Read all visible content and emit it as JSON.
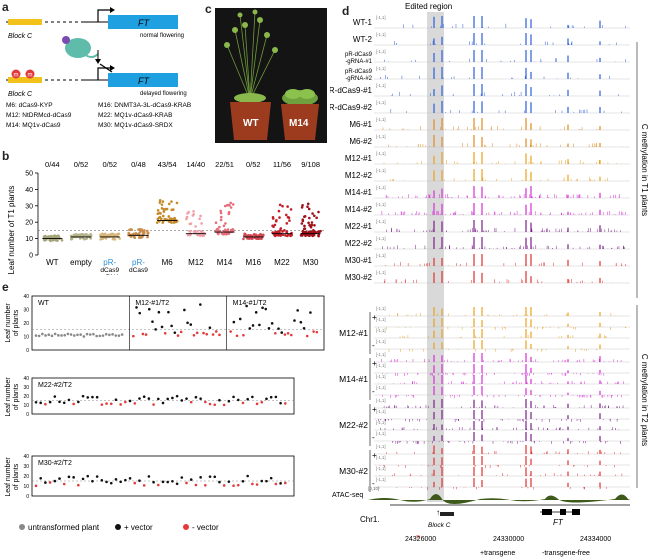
{
  "panels": {
    "a": "a",
    "b": "b",
    "c": "c",
    "d": "d",
    "e": "e"
  },
  "panel_a": {
    "block_label": "Block C",
    "gene": "FT",
    "normal": "normal flowering",
    "delayed": "delayed flowering",
    "methyl_mark": "m",
    "legend": [
      "M6: dCas9-KYP",
      "M12: NtDRMcd-dCas9",
      "M14: MQ1v-dCas9",
      "M16: DNMT3A-3L-dCas9-KRAB",
      "M22: MQ1v-dCas9-KRAB",
      "M30: MQ1v-dCas9-SRDX"
    ]
  },
  "panel_c": {
    "labels": [
      "WT",
      "M14"
    ],
    "pot_color": "#9c3b1e",
    "bg_color": "#1a1a1a"
  },
  "chart_data": [
    {
      "type": "scatter",
      "panel": "b",
      "ylabel": "Leaf number of T1 plants",
      "ylim": [
        0,
        50
      ],
      "yticks": [
        0,
        10,
        20,
        30,
        40,
        50
      ],
      "reference_line": 15,
      "categories": [
        "WT",
        "empty",
        "pR-dCas9-gRNA",
        "pR-dCas9",
        "M6",
        "M12",
        "M14",
        "M16",
        "M22",
        "M30"
      ],
      "category_display": [
        [
          "WT"
        ],
        [
          "empty"
        ],
        [
          "pR-",
          "dCas9",
          "-gRNA"
        ],
        [
          "pR-",
          "dCas9"
        ],
        [
          "M6"
        ],
        [
          "M12"
        ],
        [
          "M14"
        ],
        [
          "M16"
        ],
        [
          "M22"
        ],
        [
          "M30"
        ]
      ],
      "ratios": [
        "0/44",
        "0/52",
        "0/52",
        "0/48",
        "43/54",
        "14/40",
        "22/51",
        "0/52",
        "11/56",
        "9/108"
      ],
      "medians": [
        10,
        11,
        11,
        12,
        21,
        13,
        14,
        11,
        13,
        13
      ],
      "maxima": [
        12,
        13,
        13,
        16,
        34,
        27,
        32,
        13,
        33,
        32
      ],
      "point_counts": [
        44,
        52,
        52,
        48,
        54,
        40,
        51,
        52,
        56,
        108
      ],
      "colors": [
        "#a3a37a",
        "#b5b38a",
        "#d7b77a",
        "#c98d4d",
        "#c48a2a",
        "#f2a0a8",
        "#e66d7a",
        "#d14a52",
        "#c21f2a",
        "#a01018"
      ]
    },
    {
      "type": "scatter",
      "panel": "e",
      "ylabel": "Leaf number of plants",
      "rows": [
        {
          "titles": [
            "WT",
            "M12-#1/T2",
            "M14-#1/T2"
          ],
          "ylim": [
            0,
            40
          ],
          "yticks": [
            0,
            10,
            20,
            30,
            40
          ]
        },
        {
          "titles": [
            "M22-#2/T2"
          ],
          "ylim": [
            0,
            40
          ],
          "yticks": [
            0,
            10,
            20,
            30,
            40
          ]
        },
        {
          "titles": [
            "M30-#2/T2"
          ],
          "ylim": [
            0,
            40
          ],
          "yticks": [
            0,
            10,
            20,
            30,
            40
          ]
        }
      ],
      "legend": [
        {
          "label": "untransformed plant",
          "color": "#888888"
        },
        {
          "label": "+ vector",
          "color": "#111111"
        },
        {
          "label": "- vector",
          "color": "#e33b3b"
        }
      ]
    },
    {
      "type": "line",
      "panel": "d",
      "title": "Edited region",
      "scale_label": "[-1,1]",
      "atac_scale": "[0,10]",
      "tracks": [
        {
          "name": "WT-1",
          "color": "#2b5fd9"
        },
        {
          "name": "WT-2",
          "color": "#2b5fd9"
        },
        {
          "name": "pR-dCas9-gRNA-#1",
          "color": "#2b5fd9"
        },
        {
          "name": "pR-dCas9-gRNA-#2",
          "color": "#2b5fd9"
        },
        {
          "name": "pR-dCas9-#1",
          "color": "#2b5fd9"
        },
        {
          "name": "pR-dCas9-#2",
          "color": "#2b5fd9"
        },
        {
          "name": "M6-#1",
          "color": "#e08a1e"
        },
        {
          "name": "M6-#2",
          "color": "#e08a1e"
        },
        {
          "name": "M12-#1",
          "color": "#e8a21e"
        },
        {
          "name": "M12-#2",
          "color": "#e8a21e"
        },
        {
          "name": "M14-#1",
          "color": "#d62fd6"
        },
        {
          "name": "M14-#2",
          "color": "#d62fd6"
        },
        {
          "name": "M22-#1",
          "color": "#7a2088"
        },
        {
          "name": "M22-#2",
          "color": "#7a2088"
        },
        {
          "name": "M30-#1",
          "color": "#e03030"
        },
        {
          "name": "M30-#2",
          "color": "#e03030"
        }
      ],
      "t2_groups": [
        {
          "name": "M12-#1",
          "color": "#e8a21e"
        },
        {
          "name": "M14-#1",
          "color": "#d62fd6"
        },
        {
          "name": "M22-#2",
          "color": "#7a2088"
        },
        {
          "name": "M30-#2",
          "color": "#e03030"
        }
      ],
      "side_t1": "C methylation in T1 plants",
      "side_t2": "C methylation in T2 plants",
      "atac_label": "ATAC-seq",
      "chr_label": "Chr1.",
      "x_ticks": [
        "24326000",
        "24330000",
        "24334000"
      ],
      "block_label": "Block C",
      "gene_label": "FT",
      "footer": [
        "+transgene",
        "-transgene-free"
      ]
    }
  ]
}
